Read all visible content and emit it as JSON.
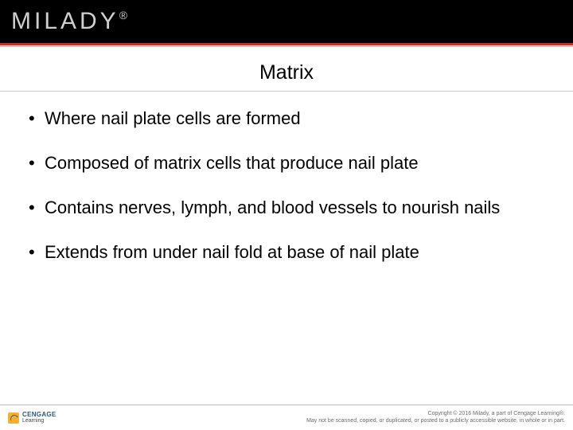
{
  "header": {
    "logo_text": "MILADY",
    "logo_dot": "®"
  },
  "colors": {
    "header_bg": "#000000",
    "accent": "#c0332b",
    "text": "#000000",
    "footer_border": "#bdbdbd",
    "footer_text": "#6b6b6b",
    "cengage_icon_bg": "#f2b134",
    "cengage_blue": "#2b5a77"
  },
  "title": "Matrix",
  "bullets": [
    "Where nail plate cells are formed",
    "Composed of matrix cells that produce nail plate",
    "Contains nerves, lymph, and blood vessels to nourish nails",
    "Extends from under nail fold at base of nail plate"
  ],
  "footer": {
    "publisher_top": "CENGAGE",
    "publisher_bottom": "Learning",
    "copyright_line1": "Copyright © 2016 Milady, a part of Cengage Learning®.",
    "copyright_line2": "May not be scanned, copied, or duplicated, or posted to a publicly accessible website, in whole or in part."
  },
  "typography": {
    "title_fontsize": 25,
    "bullet_fontsize": 22,
    "footer_fontsize": 7
  }
}
